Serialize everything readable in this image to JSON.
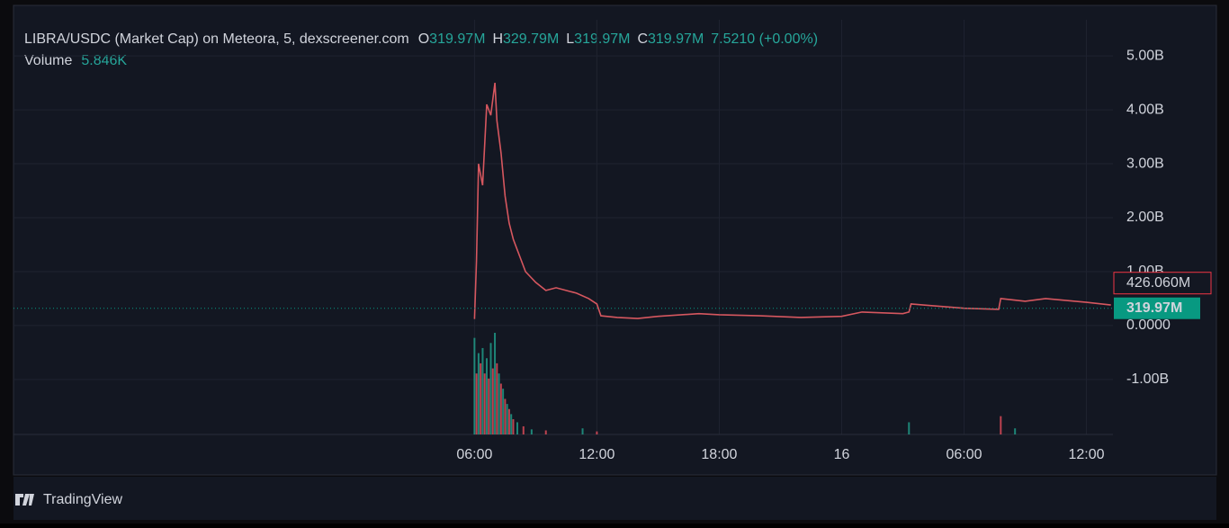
{
  "chart_data": {
    "type": "line",
    "title": "LIBRA/USDC (Market Cap) on Meteora, 5, dexscreener.com",
    "ohlc": [
      {
        "label": "O",
        "value": "319.97M"
      },
      {
        "label": "H",
        "value": "329.79M"
      },
      {
        "label": "L",
        "value": "319.97M"
      },
      {
        "label": "C",
        "value": "319.97M"
      }
    ],
    "change": "7.5210 (+0.00%)",
    "volume_label": "Volume",
    "volume_value": "5.846K",
    "xlim": [
      -16.6,
      37.3
    ],
    "xticks": [
      {
        "value": 6,
        "label": "06:00"
      },
      {
        "value": 12,
        "label": "12:00"
      },
      {
        "value": 18,
        "label": "18:00"
      },
      {
        "value": 24,
        "label": "16"
      },
      {
        "value": 30,
        "label": "06:00"
      },
      {
        "value": 36,
        "label": "12:00"
      }
    ],
    "ylim": [
      -2.02,
      5.67
    ],
    "yticks": [
      {
        "value": 5,
        "label": "5.00B"
      },
      {
        "value": 4,
        "label": "4.00B"
      },
      {
        "value": 3,
        "label": "3.00B"
      },
      {
        "value": 2,
        "label": "2.00B"
      },
      {
        "value": 1,
        "label": "1.00B"
      },
      {
        "value": 0,
        "label": "0.0000"
      },
      {
        "value": -1,
        "label": "-1.00B"
      }
    ],
    "y2lim": [
      0,
      100
    ],
    "grid": true,
    "series": [
      {
        "name": "Market Cap",
        "color": "#d6575f",
        "x": [
          6.0,
          6.1,
          6.2,
          6.4,
          6.6,
          6.8,
          7.0,
          7.1,
          7.3,
          7.5,
          7.7,
          7.9,
          8.2,
          8.5,
          9.0,
          9.5,
          10.0,
          11.0,
          11.6,
          12.0,
          12.2,
          13,
          14,
          15,
          17,
          18,
          20,
          22,
          24,
          25,
          27,
          27.3,
          27.4,
          28,
          30,
          31.7,
          31.8,
          33,
          34,
          36,
          37.2
        ],
        "values": [
          0.12,
          1.2,
          3.0,
          2.6,
          4.1,
          3.9,
          4.5,
          3.8,
          3.2,
          2.4,
          1.9,
          1.6,
          1.3,
          1.0,
          0.8,
          0.65,
          0.7,
          0.6,
          0.5,
          0.4,
          0.18,
          0.15,
          0.13,
          0.17,
          0.22,
          0.2,
          0.18,
          0.15,
          0.17,
          0.25,
          0.22,
          0.25,
          0.4,
          0.38,
          0.32,
          0.3,
          0.5,
          0.45,
          0.5,
          0.43,
          0.38
        ]
      },
      {
        "name": "Volume",
        "axis": "y2",
        "colors": [
          "#22ab94",
          "#f7525f"
        ],
        "x": [
          6.0,
          6.1,
          6.2,
          6.3,
          6.4,
          6.5,
          6.6,
          6.7,
          6.8,
          6.9,
          7.0,
          7.1,
          7.2,
          7.3,
          7.4,
          7.5,
          7.6,
          7.7,
          7.8,
          7.9,
          8.1,
          8.4,
          8.8,
          9.5,
          11.3,
          12.0,
          27.3,
          31.8,
          32.5
        ],
        "values": [
          95,
          60,
          80,
          70,
          85,
          60,
          75,
          55,
          90,
          65,
          100,
          70,
          60,
          50,
          45,
          35,
          30,
          25,
          20,
          15,
          12,
          8,
          5,
          4,
          6,
          3,
          12,
          18,
          6
        ]
      }
    ],
    "price_labels": [
      {
        "value": 0.42606,
        "label": "426.060M",
        "color": "#f23645"
      },
      {
        "value": 0.31997,
        "label": "319.97M",
        "color": "#089981"
      }
    ],
    "footer": "TradingView"
  }
}
